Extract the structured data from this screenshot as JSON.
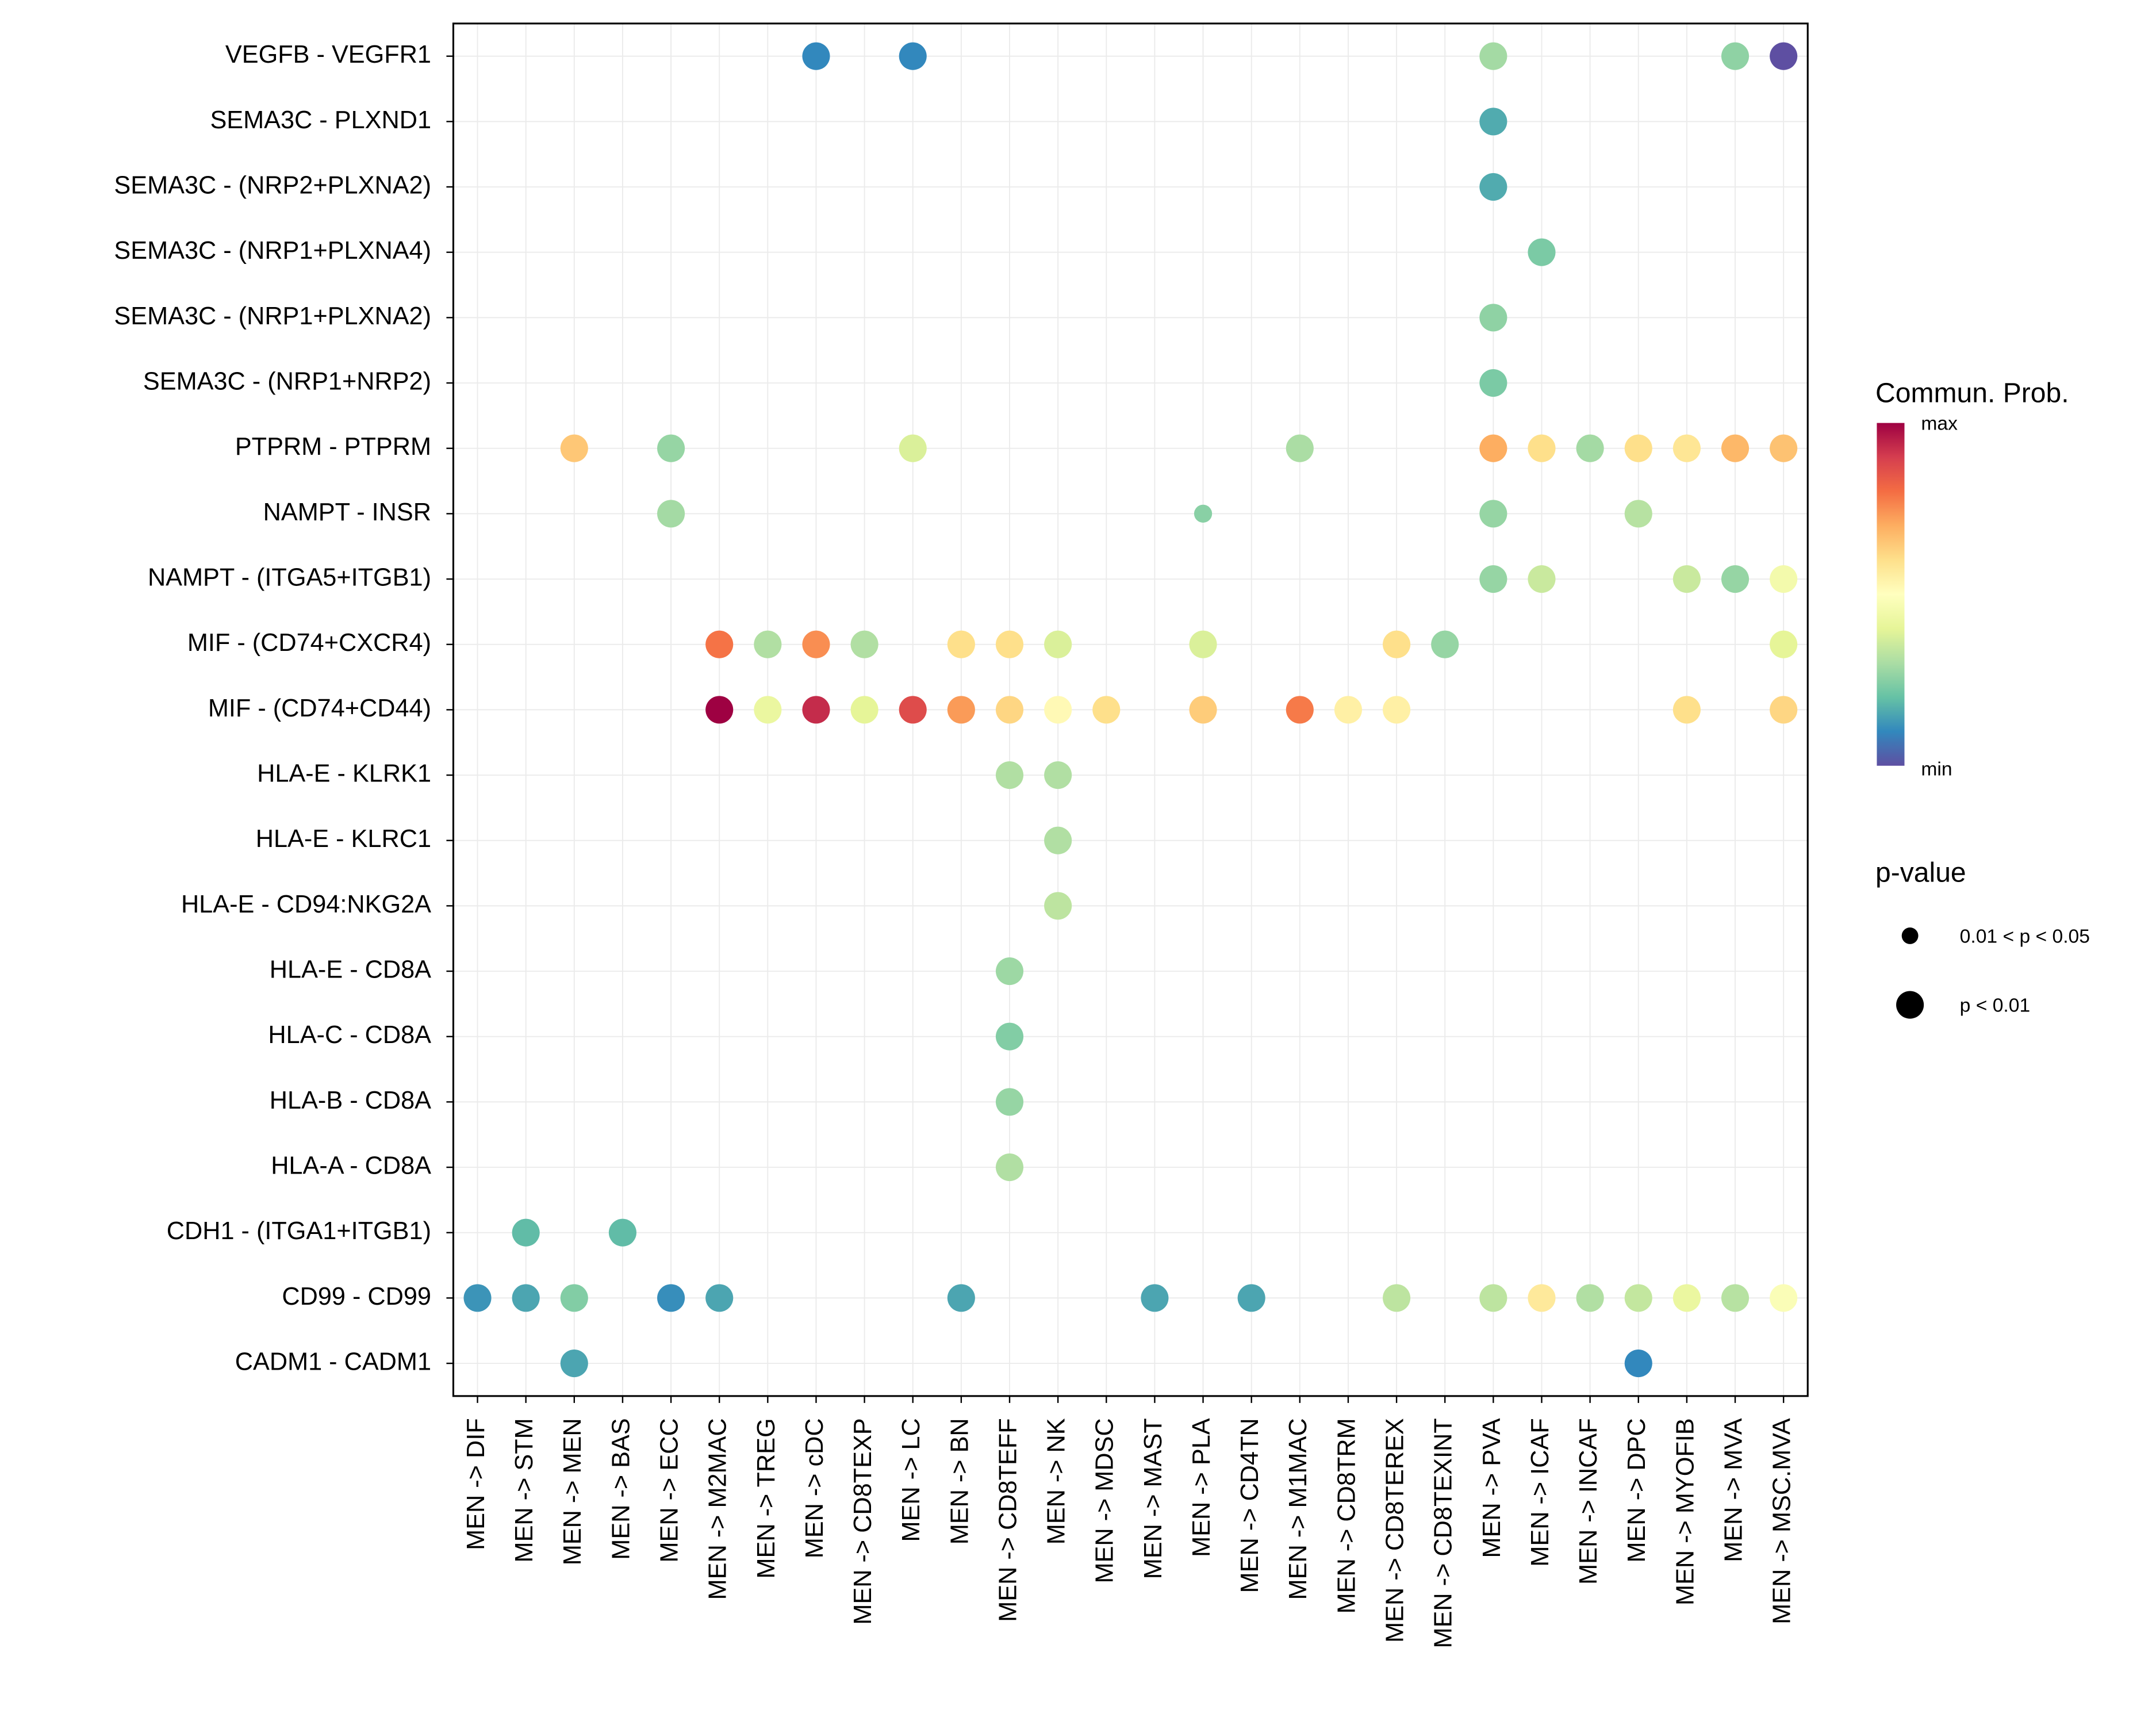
{
  "chart_data": {
    "type": "scatter",
    "subtype": "dot-plot",
    "title": "",
    "xlabel": "",
    "ylabel": "",
    "x_categories": [
      "MEN -> DIF",
      "MEN -> STM",
      "MEN -> MEN",
      "MEN -> BAS",
      "MEN -> ECC",
      "MEN -> M2MAC",
      "MEN -> TREG",
      "MEN -> cDC",
      "MEN -> CD8TEXP",
      "MEN -> LC",
      "MEN -> BN",
      "MEN -> CD8TEFF",
      "MEN -> NK",
      "MEN -> MDSC",
      "MEN -> MAST",
      "MEN -> PLA",
      "MEN -> CD4TN",
      "MEN -> M1MAC",
      "MEN -> CD8TRM",
      "MEN -> CD8TEREX",
      "MEN -> CD8TEXINT",
      "MEN -> PVA",
      "MEN -> ICAF",
      "MEN -> INCAF",
      "MEN -> DPC",
      "MEN -> MYOFIB",
      "MEN -> MVA",
      "MEN -> MSC.MVA"
    ],
    "y_categories": [
      "VEGFB - VEGFR1",
      "SEMA3C - PLXND1",
      "SEMA3C - (NRP2+PLXNA2)",
      "SEMA3C - (NRP1+PLXNA4)",
      "SEMA3C - (NRP1+PLXNA2)",
      "SEMA3C - (NRP1+NRP2)",
      "PTPRM - PTPRM",
      "NAMPT - INSR",
      "NAMPT - (ITGA5+ITGB1)",
      "MIF - (CD74+CXCR4)",
      "MIF - (CD74+CD44)",
      "HLA-E - KLRK1",
      "HLA-E - KLRC1",
      "HLA-E - CD94:NKG2A",
      "HLA-E - CD8A",
      "HLA-C - CD8A",
      "HLA-B - CD8A",
      "HLA-A - CD8A",
      "CDH1 - (ITGA1+ITGB1)",
      "CD99 - CD99",
      "CADM1 - CADM1"
    ],
    "point_fields": [
      "y_index",
      "x_index",
      "commun_prob_normalized",
      "pvalue_class"
    ],
    "points": [
      [
        0,
        7,
        0.1,
        2
      ],
      [
        0,
        9,
        0.1,
        2
      ],
      [
        0,
        21,
        0.29,
        2
      ],
      [
        0,
        26,
        0.26,
        2
      ],
      [
        0,
        27,
        0.0,
        2
      ],
      [
        1,
        21,
        0.16,
        2
      ],
      [
        2,
        21,
        0.16,
        2
      ],
      [
        3,
        22,
        0.23,
        2
      ],
      [
        4,
        21,
        0.26,
        2
      ],
      [
        5,
        21,
        0.23,
        2
      ],
      [
        6,
        2,
        0.65,
        2
      ],
      [
        6,
        4,
        0.27,
        2
      ],
      [
        6,
        9,
        0.38,
        2
      ],
      [
        6,
        17,
        0.3,
        2
      ],
      [
        6,
        21,
        0.7,
        2
      ],
      [
        6,
        22,
        0.6,
        2
      ],
      [
        6,
        23,
        0.29,
        2
      ],
      [
        6,
        24,
        0.6,
        2
      ],
      [
        6,
        25,
        0.58,
        2
      ],
      [
        6,
        26,
        0.68,
        2
      ],
      [
        6,
        27,
        0.66,
        2
      ],
      [
        7,
        4,
        0.29,
        2
      ],
      [
        7,
        15,
        0.25,
        1
      ],
      [
        7,
        21,
        0.27,
        2
      ],
      [
        7,
        24,
        0.32,
        2
      ],
      [
        8,
        21,
        0.27,
        2
      ],
      [
        8,
        22,
        0.35,
        2
      ],
      [
        8,
        25,
        0.35,
        2
      ],
      [
        8,
        26,
        0.27,
        2
      ],
      [
        8,
        27,
        0.45,
        2
      ],
      [
        9,
        5,
        0.79,
        2
      ],
      [
        9,
        6,
        0.31,
        2
      ],
      [
        9,
        7,
        0.75,
        2
      ],
      [
        9,
        8,
        0.31,
        2
      ],
      [
        9,
        10,
        0.6,
        2
      ],
      [
        9,
        11,
        0.6,
        2
      ],
      [
        9,
        12,
        0.38,
        2
      ],
      [
        9,
        15,
        0.38,
        2
      ],
      [
        9,
        19,
        0.6,
        2
      ],
      [
        9,
        20,
        0.27,
        2
      ],
      [
        9,
        27,
        0.4,
        2
      ],
      [
        10,
        5,
        1.0,
        2
      ],
      [
        10,
        6,
        0.42,
        2
      ],
      [
        10,
        7,
        0.93,
        2
      ],
      [
        10,
        8,
        0.4,
        2
      ],
      [
        10,
        9,
        0.87,
        2
      ],
      [
        10,
        10,
        0.73,
        2
      ],
      [
        10,
        11,
        0.62,
        2
      ],
      [
        10,
        12,
        0.52,
        2
      ],
      [
        10,
        13,
        0.6,
        2
      ],
      [
        10,
        15,
        0.64,
        2
      ],
      [
        10,
        17,
        0.78,
        2
      ],
      [
        10,
        18,
        0.55,
        2
      ],
      [
        10,
        19,
        0.55,
        2
      ],
      [
        10,
        25,
        0.6,
        2
      ],
      [
        10,
        27,
        0.62,
        2
      ],
      [
        11,
        11,
        0.31,
        2
      ],
      [
        11,
        12,
        0.31,
        2
      ],
      [
        12,
        12,
        0.31,
        2
      ],
      [
        13,
        12,
        0.33,
        2
      ],
      [
        14,
        11,
        0.28,
        2
      ],
      [
        15,
        11,
        0.24,
        2
      ],
      [
        16,
        11,
        0.27,
        2
      ],
      [
        17,
        11,
        0.31,
        2
      ],
      [
        18,
        1,
        0.19,
        2
      ],
      [
        18,
        3,
        0.19,
        2
      ],
      [
        19,
        0,
        0.12,
        2
      ],
      [
        19,
        1,
        0.15,
        2
      ],
      [
        19,
        2,
        0.24,
        2
      ],
      [
        19,
        4,
        0.11,
        2
      ],
      [
        19,
        5,
        0.15,
        2
      ],
      [
        19,
        10,
        0.15,
        2
      ],
      [
        19,
        14,
        0.15,
        2
      ],
      [
        19,
        16,
        0.15,
        2
      ],
      [
        19,
        19,
        0.33,
        2
      ],
      [
        19,
        21,
        0.33,
        2
      ],
      [
        19,
        22,
        0.57,
        2
      ],
      [
        19,
        23,
        0.31,
        2
      ],
      [
        19,
        24,
        0.34,
        2
      ],
      [
        19,
        25,
        0.42,
        2
      ],
      [
        19,
        26,
        0.32,
        2
      ],
      [
        19,
        27,
        0.48,
        2
      ],
      [
        20,
        2,
        0.15,
        2
      ],
      [
        20,
        24,
        0.1,
        2
      ]
    ],
    "colorbar": {
      "title": "Commun. Prob.",
      "max_label": "max",
      "min_label": "min",
      "colormap": "Spectral (reversed)"
    },
    "size_legend": {
      "title": "p-value",
      "entries": [
        {
          "label": "0.01 < p < 0.05",
          "class": 1
        },
        {
          "label": "p < 0.01",
          "class": 2
        }
      ]
    },
    "grid": true,
    "legend_position": "right"
  },
  "colors": {
    "spectral": [
      "#5E4FA2",
      "#3288BD",
      "#66C2A5",
      "#ABDDA4",
      "#E6F598",
      "#FFFFBF",
      "#FEE08B",
      "#FDAE61",
      "#F46D43",
      "#D53E4F",
      "#9E0142"
    ],
    "grid": "#EBEBEB",
    "axis": "#000000"
  }
}
